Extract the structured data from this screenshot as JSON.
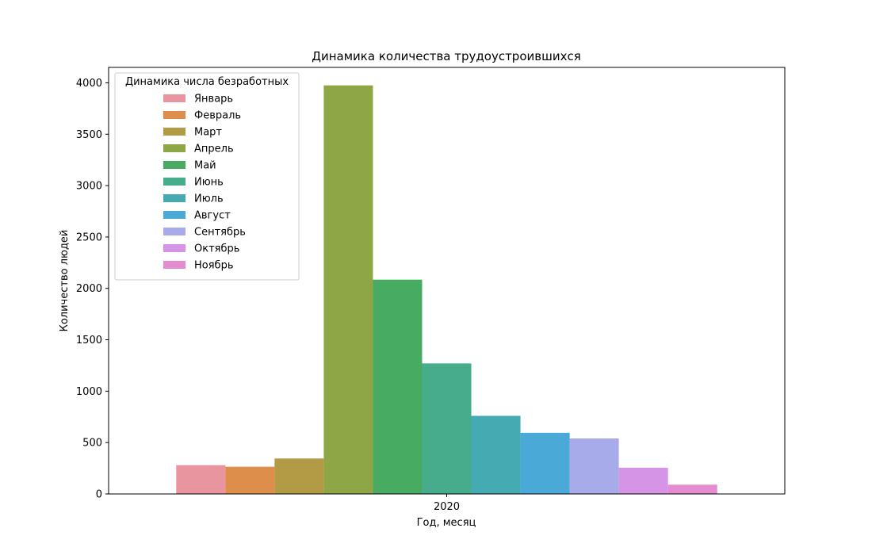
{
  "chart_data": {
    "type": "bar",
    "title": "Динамика количества трудоустроившихся",
    "xlabel": "Год, месяц",
    "ylabel": "Количество людей",
    "categories": [
      "2020"
    ],
    "ylim": [
      0,
      4150
    ],
    "yticks": [
      0,
      500,
      1000,
      1500,
      2000,
      2500,
      3000,
      3500,
      4000
    ],
    "grid": false,
    "legend": {
      "title": "Динамика числа безработных",
      "placement": "top-left"
    },
    "series": [
      {
        "name": "Январь",
        "values": [
          280
        ],
        "color": "#e8959f"
      },
      {
        "name": "Февраль",
        "values": [
          265
        ],
        "color": "#dc8e4a"
      },
      {
        "name": "Март",
        "values": [
          345
        ],
        "color": "#b39b45"
      },
      {
        "name": "Апрель",
        "values": [
          3975
        ],
        "color": "#8ea645"
      },
      {
        "name": "Май",
        "values": [
          2085
        ],
        "color": "#47ab61"
      },
      {
        "name": "Июнь",
        "values": [
          1270
        ],
        "color": "#46ac8c"
      },
      {
        "name": "Июль",
        "values": [
          760
        ],
        "color": "#46aab2"
      },
      {
        "name": "Август",
        "values": [
          595
        ],
        "color": "#4ba9d8"
      },
      {
        "name": "Сентябрь",
        "values": [
          540
        ],
        "color": "#a7abe9"
      },
      {
        "name": "Октябрь",
        "values": [
          255
        ],
        "color": "#d694e6"
      },
      {
        "name": "Ноябрь",
        "values": [
          90
        ],
        "color": "#e58bd0"
      }
    ]
  }
}
